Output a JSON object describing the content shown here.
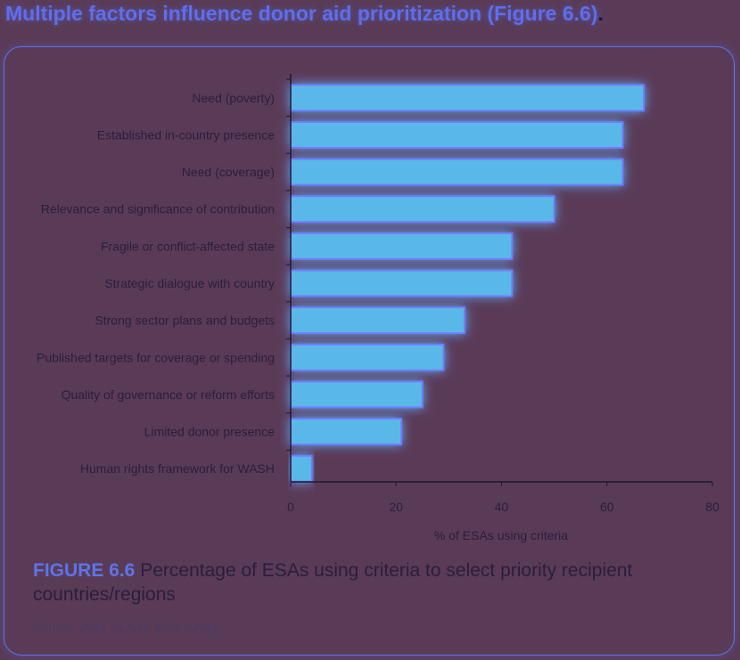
{
  "page_title": "Multiple factors influence donor aid prioritization (Figure 6.6)",
  "page_title_end": ".",
  "caption": {
    "label": "FIGURE 6.6",
    "text": " Percentage of ESAs using criteria to select priority recipient countries/regions"
  },
  "source": "Source: 2011 GLAAS ESA survey",
  "colors": {
    "background": "#5a3b57",
    "bar": "#5ab8e8",
    "bar_glow": "#6f7cff",
    "text_dark": "#2a1e3c",
    "accent": "#5d74ea"
  },
  "chart_data": {
    "type": "bar",
    "orientation": "horizontal",
    "categories": [
      "Need (poverty)",
      "Established in-country presence",
      "Need (coverage)",
      "Relevance and significance of contribution",
      "Fragile or conflict-affected state",
      "Strategic dialogue with country",
      "Strong sector plans and budgets",
      "Published targets for coverage or spending",
      "Quality of governance or reform efforts",
      "Limited donor presence",
      "Human rights framework for WASH"
    ],
    "values": [
      67,
      63,
      63,
      50,
      42,
      42,
      33,
      29,
      25,
      21,
      4
    ],
    "xlabel": "% of ESAs using criteria",
    "ylabel": "",
    "xlim": [
      0,
      80
    ],
    "xticks": [
      0,
      20,
      40,
      60,
      80
    ],
    "grid": false,
    "legend": "none"
  }
}
